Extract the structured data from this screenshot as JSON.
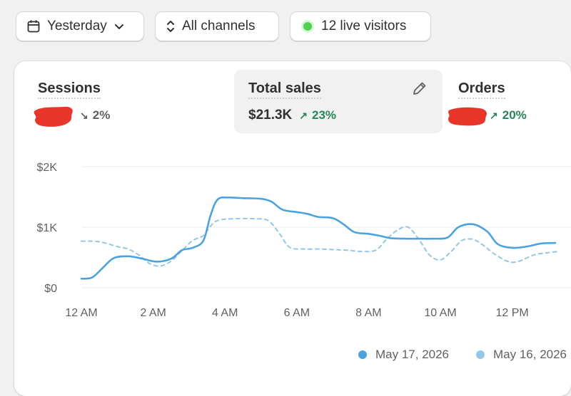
{
  "filters": {
    "date_label": "Yesterday",
    "channel_label": "All channels",
    "live_visitors_label": "12 live visitors"
  },
  "metrics": {
    "sessions": {
      "title": "Sessions",
      "change": "2%",
      "direction": "down"
    },
    "total_sales": {
      "title": "Total sales",
      "value": "$21.3K",
      "change": "23%",
      "direction": "up"
    },
    "orders": {
      "title": "Orders",
      "change": "20%",
      "direction": "up"
    }
  },
  "colors": {
    "current_series": "#4aa3df",
    "previous_series": "#93c7e8",
    "live_dot": "#50d24e",
    "up": "#29845a",
    "redaction": "#e8372a"
  },
  "chart_data": {
    "type": "line",
    "ylim": [
      0,
      2000
    ],
    "y_ticks": [
      {
        "value": 0,
        "label": "$0"
      },
      {
        "value": 1000,
        "label": "$1K"
      },
      {
        "value": 2000,
        "label": "$2K"
      }
    ],
    "x_ticks": [
      {
        "hour": 0,
        "label": "12 AM"
      },
      {
        "hour": 2,
        "label": "2 AM"
      },
      {
        "hour": 4,
        "label": "4 AM"
      },
      {
        "hour": 6,
        "label": "6 AM"
      },
      {
        "hour": 8,
        "label": "8 AM"
      },
      {
        "hour": 10,
        "label": "10 AM"
      },
      {
        "hour": 12,
        "label": "12 PM"
      }
    ],
    "series": [
      {
        "name": "May 17, 2026",
        "style": "solid",
        "points": [
          [
            0,
            150
          ],
          [
            0.3,
            170
          ],
          [
            0.6,
            330
          ],
          [
            0.9,
            490
          ],
          [
            1.3,
            520
          ],
          [
            1.7,
            480
          ],
          [
            2.1,
            430
          ],
          [
            2.5,
            480
          ],
          [
            2.8,
            620
          ],
          [
            3.1,
            660
          ],
          [
            3.4,
            780
          ],
          [
            3.6,
            1200
          ],
          [
            3.8,
            1460
          ],
          [
            4.1,
            1490
          ],
          [
            4.5,
            1480
          ],
          [
            5.0,
            1470
          ],
          [
            5.3,
            1420
          ],
          [
            5.6,
            1290
          ],
          [
            6.0,
            1250
          ],
          [
            6.3,
            1220
          ],
          [
            6.6,
            1170
          ],
          [
            7.0,
            1150
          ],
          [
            7.3,
            1050
          ],
          [
            7.6,
            920
          ],
          [
            8.0,
            890
          ],
          [
            8.3,
            860
          ],
          [
            8.6,
            820
          ],
          [
            9.0,
            810
          ],
          [
            9.4,
            810
          ],
          [
            9.8,
            810
          ],
          [
            10.2,
            830
          ],
          [
            10.5,
            1000
          ],
          [
            10.9,
            1050
          ],
          [
            11.3,
            930
          ],
          [
            11.6,
            720
          ],
          [
            12.0,
            660
          ],
          [
            12.4,
            680
          ],
          [
            12.8,
            730
          ],
          [
            13.2,
            740
          ]
        ]
      },
      {
        "name": "May 16, 2026",
        "style": "dashed",
        "points": [
          [
            0,
            770
          ],
          [
            0.5,
            760
          ],
          [
            1.0,
            680
          ],
          [
            1.3,
            640
          ],
          [
            1.6,
            540
          ],
          [
            1.9,
            400
          ],
          [
            2.2,
            360
          ],
          [
            2.5,
            440
          ],
          [
            2.8,
            610
          ],
          [
            3.1,
            780
          ],
          [
            3.4,
            860
          ],
          [
            3.6,
            1020
          ],
          [
            3.8,
            1110
          ],
          [
            4.2,
            1140
          ],
          [
            4.8,
            1140
          ],
          [
            5.2,
            1110
          ],
          [
            5.5,
            910
          ],
          [
            5.8,
            670
          ],
          [
            6.2,
            640
          ],
          [
            6.6,
            640
          ],
          [
            7.0,
            630
          ],
          [
            7.4,
            620
          ],
          [
            7.8,
            600
          ],
          [
            8.2,
            620
          ],
          [
            8.5,
            800
          ],
          [
            8.8,
            950
          ],
          [
            9.1,
            1000
          ],
          [
            9.4,
            800
          ],
          [
            9.7,
            540
          ],
          [
            10.0,
            460
          ],
          [
            10.3,
            600
          ],
          [
            10.6,
            780
          ],
          [
            10.9,
            800
          ],
          [
            11.2,
            700
          ],
          [
            11.5,
            560
          ],
          [
            11.9,
            430
          ],
          [
            12.2,
            440
          ],
          [
            12.6,
            540
          ],
          [
            13.0,
            580
          ],
          [
            13.3,
            600
          ]
        ]
      }
    ]
  }
}
